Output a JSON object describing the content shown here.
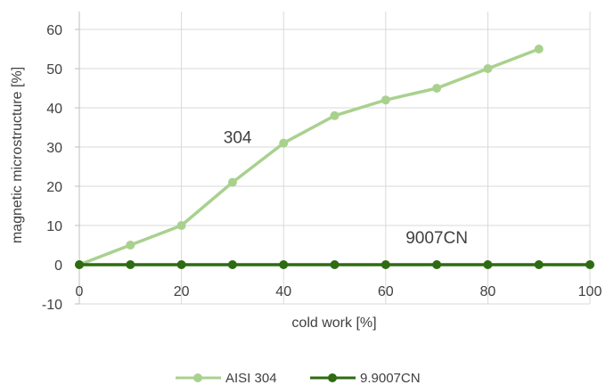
{
  "chart_data": {
    "type": "line",
    "xlabel": "cold work [%]",
    "ylabel": "magnetic microstructure [%]",
    "xlim": [
      0,
      100
    ],
    "ylim": [
      -10,
      60
    ],
    "x_ticks": [
      0,
      20,
      40,
      60,
      80,
      100
    ],
    "y_ticks": [
      -10,
      0,
      10,
      20,
      30,
      40,
      50,
      60
    ],
    "grid": true,
    "legend_position": "bottom",
    "series": [
      {
        "name": "AISI 304",
        "color": "#a9d18e",
        "x": [
          0,
          10,
          20,
          30,
          40,
          50,
          60,
          70,
          80,
          90
        ],
        "y": [
          0,
          5,
          10,
          21,
          31,
          38,
          42,
          45,
          50,
          55
        ]
      },
      {
        "name": "9.9007CN",
        "color": "#2e6b12",
        "x": [
          0,
          10,
          20,
          30,
          40,
          50,
          60,
          70,
          80,
          90,
          100
        ],
        "y": [
          0,
          0,
          0,
          0,
          0,
          0,
          0,
          0,
          0,
          0,
          0
        ]
      }
    ],
    "annotations": [
      {
        "text": "304",
        "x": 31,
        "y": 31
      },
      {
        "text": "9007CN",
        "x": 70,
        "y": 5.5
      }
    ]
  }
}
